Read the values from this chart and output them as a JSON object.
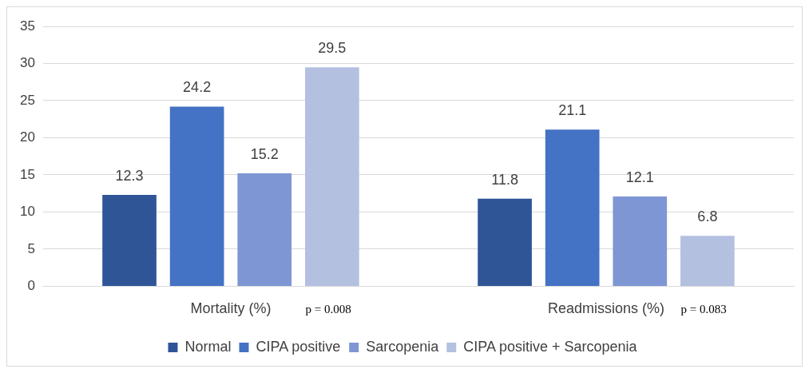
{
  "chart_data": {
    "type": "bar",
    "categories": [
      "Mortality (%)",
      "Readmissions (%)"
    ],
    "series": [
      {
        "name": "Normal",
        "color": "#2f5597",
        "values": [
          12.3,
          11.8
        ]
      },
      {
        "name": "CIPA positive",
        "color": "#4472c4",
        "values": [
          24.2,
          21.1
        ]
      },
      {
        "name": "Sarcopenia",
        "color": "#7f96d4",
        "values": [
          15.2,
          12.1
        ]
      },
      {
        "name": "CIPA positive + Sarcopenia",
        "color": "#b4c0e0",
        "values": [
          29.5,
          6.8
        ]
      }
    ],
    "ylim": [
      0,
      35
    ],
    "yticks": [
      0,
      5,
      10,
      15,
      20,
      25,
      30,
      35
    ],
    "grid": "y",
    "legend": "bottom",
    "data_labels": true,
    "annotations": [
      "p = 0.008",
      "p = 0.083"
    ]
  }
}
